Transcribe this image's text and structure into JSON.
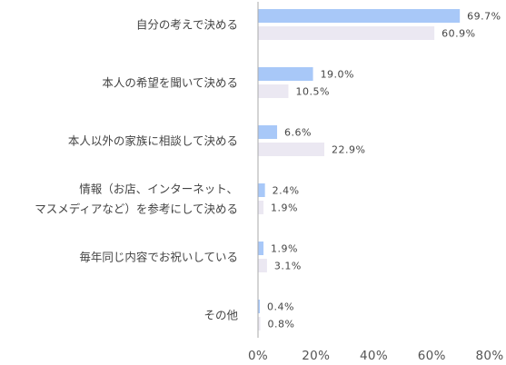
{
  "chart_data": {
    "type": "bar",
    "orientation": "horizontal",
    "categories": [
      [
        "自分の考えで決める"
      ],
      [
        "本人の希望を聞いて決める"
      ],
      [
        "本人以外の家族に相談して決める"
      ],
      [
        "情報（お店、インターネット、",
        "マスメディアなど）を参考にして決める"
      ],
      [
        "毎年同じ内容でお祝いしている"
      ],
      [
        "その他"
      ]
    ],
    "series": [
      {
        "values": [
          69.7,
          19.0,
          6.6,
          2.4,
          1.9,
          0.4
        ],
        "labels": [
          "69.7%",
          "19.0%",
          "6.6%",
          "2.4%",
          "1.9%",
          "0.4%"
        ],
        "color": "#a8c8f8"
      },
      {
        "values": [
          60.9,
          10.5,
          22.9,
          1.9,
          3.1,
          0.8
        ],
        "labels": [
          "60.9%",
          "10.5%",
          "22.9%",
          "1.9%",
          "3.1%",
          "0.8%"
        ],
        "color": "#ebe8f2"
      }
    ],
    "x_ticks": [
      "0%",
      "20%",
      "40%",
      "60%",
      "80%"
    ],
    "xlim": [
      0,
      80
    ],
    "axis_color": "#aaaaaa",
    "grid": false,
    "legend": "none"
  }
}
